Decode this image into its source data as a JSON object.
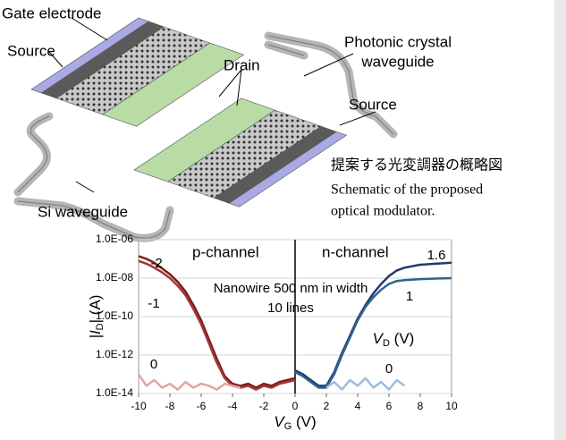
{
  "diagram": {
    "labels": [
      "Gate electrode",
      "Source",
      "Drain",
      "Photonic crystal",
      "waveguide",
      "Source",
      "Si waveguide"
    ],
    "caption": [
      "提案する光変調器の概略図",
      "Schematic of the proposed",
      "optical modulator."
    ]
  },
  "chart_data": {
    "type": "line",
    "x_label": [
      "V",
      "G",
      " (V)"
    ],
    "y_label": [
      "|I",
      "D",
      "| (A)"
    ],
    "log_y": true,
    "xlim": [
      -10,
      10
    ],
    "xticks": [
      -10,
      -8,
      -6,
      -4,
      -2,
      0,
      2,
      4,
      6,
      8,
      10
    ],
    "ylim": [
      1e-14,
      1e-06
    ],
    "yticks": [
      {
        "value": 1e-14,
        "label": "1.0E-14"
      },
      {
        "value": 1e-12,
        "label": "1.0E-12"
      },
      {
        "value": 1e-10,
        "label": "1.0E-10"
      },
      {
        "value": 1e-08,
        "label": "1.0E-08"
      },
      {
        "value": 1e-06,
        "label": "1.0E-06"
      }
    ],
    "grid": true,
    "annotations": [
      "p-channel",
      "n-channel",
      "Nanowire 500 nm in width",
      "10 lines"
    ],
    "vd_label": [
      "V",
      "D",
      " (V)"
    ],
    "series": [
      {
        "name": "-2",
        "color": "#7a1c1c",
        "x": [
          -10,
          -9.5,
          -9,
          -8.5,
          -8,
          -7.5,
          -7,
          -6.5,
          -6,
          -5.5,
          -5,
          -4.5,
          -4,
          -3.5,
          -3,
          -2.5,
          -2,
          -1.5,
          -1,
          -0.5,
          0
        ],
        "values": [
          1.4e-07,
          1e-07,
          6.3e-08,
          3.2e-08,
          1.6e-08,
          6.3e-09,
          2e-09,
          4e-10,
          6.3e-11,
          6.3e-12,
          6.3e-13,
          7.9e-14,
          3.2e-14,
          2.5e-14,
          3.2e-14,
          2e-14,
          3.2e-14,
          2.5e-14,
          4e-14,
          5e-14,
          6.3e-14
        ]
      },
      {
        "name": "-1",
        "color": "#a33636",
        "x": [
          -10,
          -9.5,
          -9,
          -8.5,
          -8,
          -7.5,
          -7,
          -6.5,
          -6,
          -5.5,
          -5,
          -4.5,
          -4,
          -3.5,
          -3,
          -2.5,
          -2,
          -1.5,
          -1,
          -0.5,
          0
        ],
        "values": [
          7.9e-08,
          5.6e-08,
          3.5e-08,
          2e-08,
          1e-08,
          4e-09,
          1.3e-09,
          2.5e-10,
          4e-11,
          4e-12,
          4e-13,
          6.3e-14,
          2.5e-14,
          2e-14,
          2.5e-14,
          1.6e-14,
          2.5e-14,
          2e-14,
          3.2e-14,
          4e-14,
          5e-14
        ]
      },
      {
        "name": "0",
        "color": "#e3a3a3",
        "x": [
          -10,
          -9.5,
          -9,
          -8.5,
          -8,
          -7.5,
          -7,
          -6.5,
          -6,
          -5.5,
          -5,
          -4.5,
          -4,
          -3.5
        ],
        "values": [
          1e-13,
          2.5e-14,
          5e-14,
          2e-14,
          3.2e-14,
          1.6e-14,
          4e-14,
          2e-14,
          3.2e-14,
          2.5e-14,
          1.6e-14,
          3.2e-14,
          2.5e-14,
          2e-14
        ]
      },
      {
        "name": "1.6",
        "color": "#1f3a6b",
        "x": [
          0,
          0.5,
          1,
          1.5,
          2,
          2.5,
          3,
          3.5,
          4,
          4.5,
          5,
          5.5,
          6,
          6.5,
          7,
          8,
          9,
          10
        ],
        "values": [
          1.6e-13,
          1e-13,
          5e-14,
          2.5e-14,
          2.5e-14,
          1.3e-13,
          1.3e-12,
          1e-11,
          7.9e-11,
          4e-10,
          1.6e-09,
          5e-09,
          1.3e-08,
          2.5e-08,
          3.5e-08,
          5e-08,
          5.6e-08,
          6.3e-08
        ]
      },
      {
        "name": "1",
        "color": "#2f6491",
        "x": [
          0,
          0.5,
          1,
          1.5,
          2,
          2.5,
          3,
          3.5,
          4,
          4.5,
          5,
          5.5,
          6,
          6.5,
          7,
          8,
          9,
          10
        ],
        "values": [
          1.3e-13,
          7.9e-14,
          4e-14,
          2e-14,
          2e-14,
          1e-13,
          1e-12,
          7.9e-12,
          6.3e-11,
          3.2e-10,
          1e-09,
          2.5e-09,
          5e-09,
          7.1e-09,
          7.9e-09,
          8.9e-09,
          9.5e-09,
          1e-08
        ]
      },
      {
        "name": "0",
        "color": "#9dbce0",
        "x": [
          2,
          2.5,
          3,
          3.5,
          4,
          4.5,
          5,
          5.5,
          6,
          6.5,
          7
        ],
        "values": [
          2e-14,
          4e-14,
          1.6e-14,
          5e-14,
          2.5e-14,
          6.3e-14,
          2e-14,
          4e-14,
          1.6e-14,
          5e-14,
          2.5e-14
        ]
      }
    ]
  }
}
